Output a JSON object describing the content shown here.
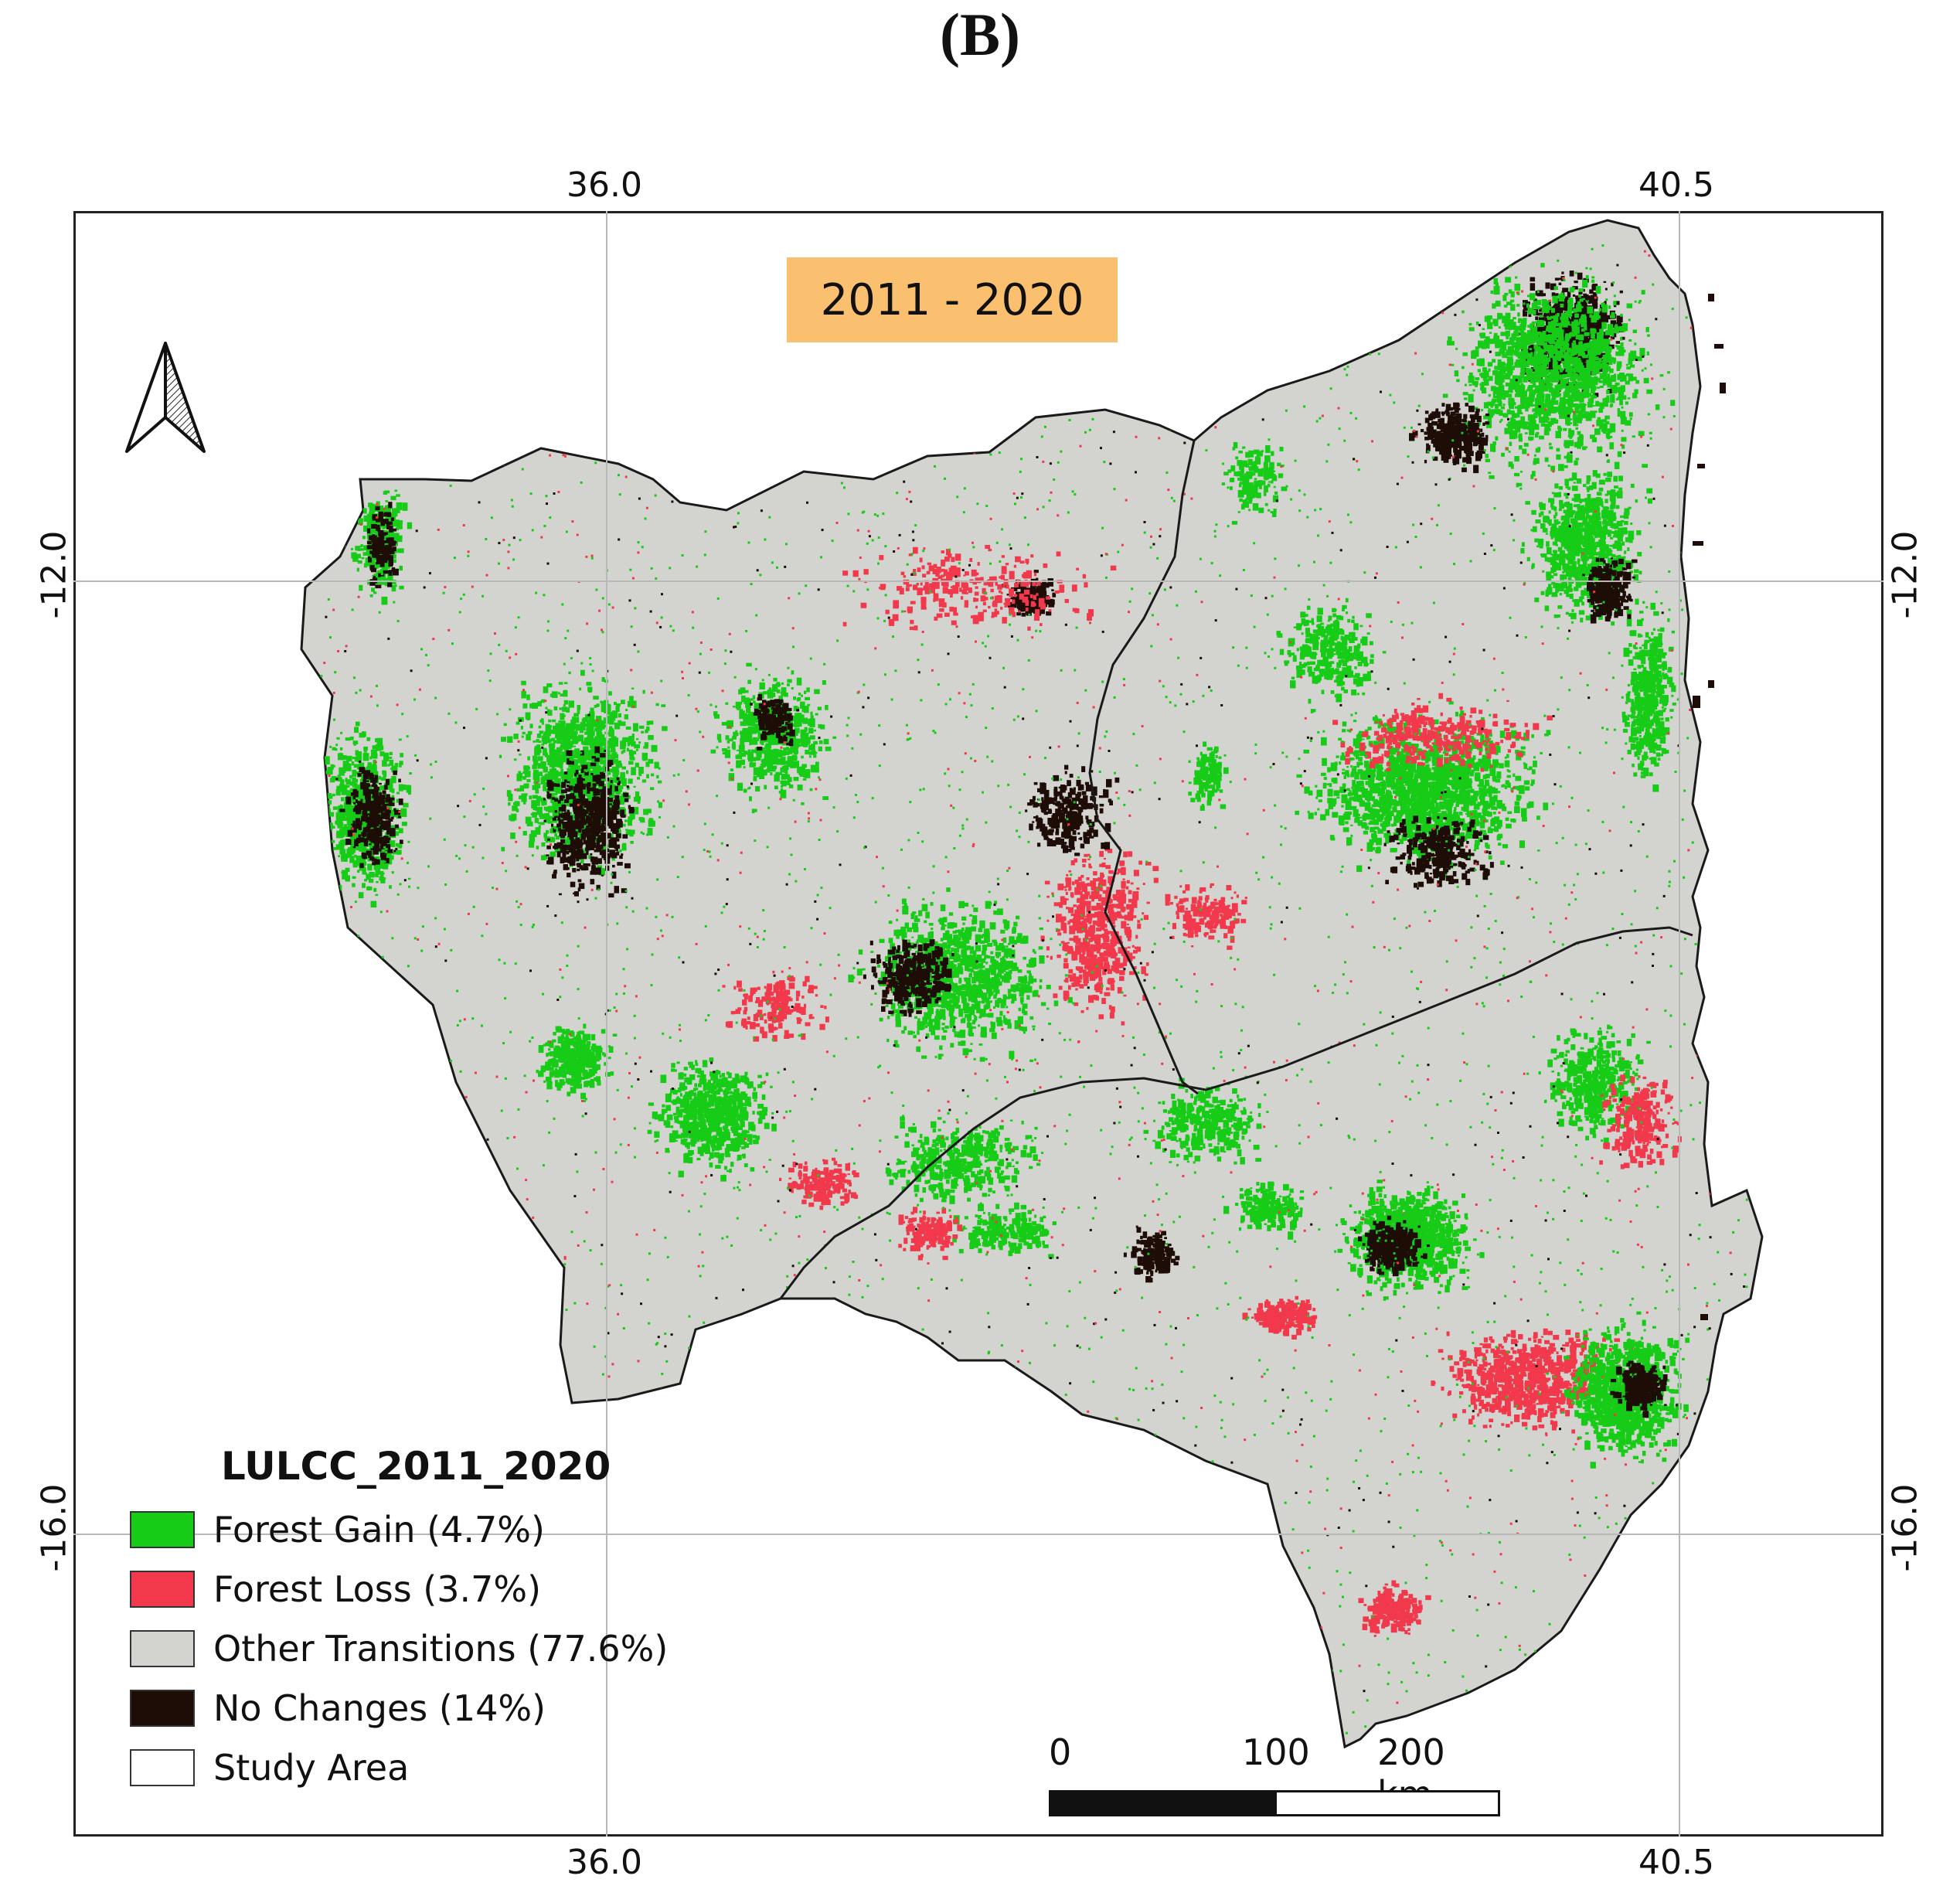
{
  "panel_label": "(B)",
  "period_label": "2011 - 2020",
  "graticule": {
    "top_x_labels": [
      "36.0",
      "40.5"
    ],
    "bottom_x_labels": [
      "36.0",
      "40.5"
    ],
    "left_y_labels": [
      "-12.0",
      "-16.0"
    ],
    "right_y_labels": [
      "-12.0",
      "-16.0"
    ]
  },
  "legend": {
    "title": "LULCC_2011_2020",
    "items": [
      {
        "label": "Forest Gain (4.7%)",
        "color": "#16cc16"
      },
      {
        "label": "Forest Loss (3.7%)",
        "color": "#f2394c"
      },
      {
        "label": "Other Transitions (77.6%)",
        "color": "#d3d3cf"
      },
      {
        "label": "No Changes (14%)",
        "color": "#1e0c06"
      },
      {
        "label": "Study Area",
        "color": "#ffffff"
      }
    ]
  },
  "scale_bar": {
    "labels": [
      "0",
      "100",
      "200 km"
    ]
  },
  "colors": {
    "land": "#d3d3cf",
    "gain": "#16cc16",
    "loss": "#f2394c",
    "nochange": "#1e0c06",
    "period_box": "#fbbf70"
  },
  "north_arrow_icon": "north-arrow-icon"
}
